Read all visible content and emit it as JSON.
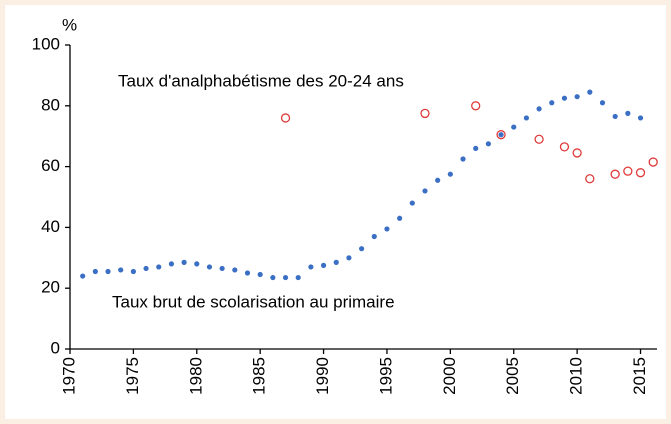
{
  "chart_data": {
    "type": "scatter",
    "y_unit_label": "%",
    "annotations": [
      "Taux d'analphabétisme des 20-24 ans",
      "Taux brut de scolarisation au primaire"
    ],
    "xlim": [
      1970,
      2016.3
    ],
    "xticks": [
      1970,
      1975,
      1980,
      1985,
      1990,
      1995,
      2000,
      2005,
      2010,
      2015
    ],
    "ylim": [
      0,
      100
    ],
    "yticks": [
      0,
      20,
      40,
      60,
      80,
      100
    ],
    "series": [
      {
        "name": "Taux brut de scolarisation au primaire",
        "color": "#3a6fc4",
        "marker": "dot",
        "x": [
          1971,
          1972,
          1973,
          1974,
          1975,
          1976,
          1977,
          1978,
          1979,
          1980,
          1981,
          1982,
          1983,
          1984,
          1985,
          1986,
          1987,
          1988,
          1989,
          1990,
          1991,
          1992,
          1993,
          1994,
          1995,
          1996,
          1997,
          1998,
          1999,
          2000,
          2001,
          2002,
          2003,
          2004,
          2005,
          2006,
          2007,
          2008,
          2009,
          2010,
          2011,
          2012,
          2013,
          2014,
          2015
        ],
        "values": [
          24,
          25.5,
          25.5,
          26,
          25.5,
          26.5,
          27,
          28,
          28.5,
          28,
          27,
          26.5,
          26,
          25,
          24.5,
          23.5,
          23.5,
          23.5,
          27,
          27.5,
          28.5,
          30,
          33,
          37,
          39.5,
          43,
          48,
          52,
          55.5,
          57.5,
          62.5,
          66,
          67.5,
          70.5,
          73,
          76,
          79,
          81,
          82.5,
          83,
          84.5,
          81,
          76.5,
          77.5,
          76
        ]
      },
      {
        "name": "Taux d'analphabétisme des 20-24 ans",
        "color": "#e03a3a",
        "marker": "circle",
        "x": [
          1987,
          1998,
          2002,
          2004,
          2007,
          2009,
          2010,
          2011,
          2013,
          2014,
          2015,
          2016
        ],
        "values": [
          76,
          77.5,
          80,
          70.5,
          69,
          66.5,
          64.5,
          56,
          57.5,
          58.5,
          58,
          61.5
        ]
      }
    ]
  }
}
